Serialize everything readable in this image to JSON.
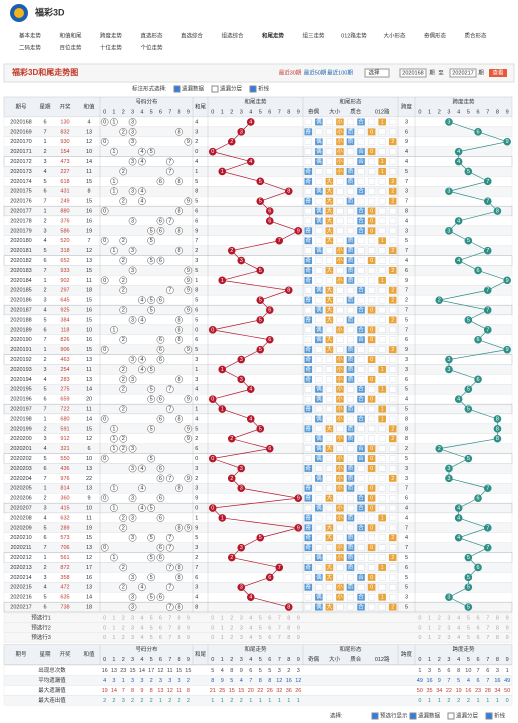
{
  "header": {
    "site": "福彩3D"
  },
  "nav": [
    [
      "基本走势",
      "和值和尾",
      "跨度走势",
      "直选形态",
      "直选综合",
      "组选综合",
      "和尾走势",
      "组三走势",
      "012路走势",
      "大小形态",
      "奇偶形态",
      "质合形态"
    ],
    [
      "二码走势",
      "百位走势",
      "十位走势",
      "个位走势"
    ]
  ],
  "page_title": "福彩3D和尾走势图",
  "filters": {
    "recent": [
      "最近30期",
      "最近50期",
      "最近100期"
    ],
    "select": "选择",
    "from": "2020168",
    "to_label": "至",
    "to": "2020217",
    "unit": "期",
    "button": "查看"
  },
  "options": {
    "label": "标注形式选择:",
    "items": [
      {
        "label": "遗漏数据",
        "checked": true
      },
      {
        "label": "遗漏分层",
        "checked": false
      },
      {
        "label": "折线",
        "checked": true
      }
    ]
  },
  "table": {
    "columns": [
      "期号",
      "星期",
      "开奖",
      "和值"
    ],
    "groups": [
      "号码分布",
      "和尾",
      "和尾走势",
      "和尾形态",
      "跨度",
      "跨度走势"
    ],
    "digits": [
      "0",
      "1",
      "2",
      "3",
      "4",
      "5",
      "6",
      "7",
      "8",
      "9"
    ],
    "forms": [
      {
        "name": "奇偶",
        "options": [
          "奇",
          "偶"
        ]
      },
      {
        "name": "大小",
        "options": [
          "大",
          "小"
        ]
      },
      {
        "name": "质合",
        "options": [
          "质",
          "合"
        ]
      },
      {
        "name": "012路",
        "options": [
          "0",
          "1",
          "2"
        ]
      }
    ],
    "rows": [
      [
        "2020168",
        6,
        "130",
        4,
        3
      ],
      [
        "2020169",
        7,
        "832",
        13,
        6
      ],
      [
        "2020170",
        1,
        "930",
        12,
        9
      ],
      [
        "2020171",
        2,
        "154",
        10,
        4
      ],
      [
        "2020172",
        3,
        "473",
        14,
        4
      ],
      [
        "2020173",
        4,
        "227",
        11,
        5
      ],
      [
        "2020174",
        5,
        "618",
        15,
        7
      ],
      [
        "2020175",
        6,
        "431",
        8,
        3
      ],
      [
        "2020176",
        7,
        "249",
        15,
        7
      ],
      [
        "2020177",
        1,
        "880",
        16,
        8
      ],
      [
        "2020178",
        2,
        "376",
        16,
        4
      ],
      [
        "2020179",
        3,
        "586",
        19,
        3
      ],
      [
        "2020180",
        4,
        "520",
        7,
        5
      ],
      [
        "2020181",
        5,
        "318",
        12,
        7
      ],
      [
        "2020182",
        6,
        "652",
        13,
        4
      ],
      [
        "2020183",
        7,
        "933",
        15,
        6
      ],
      [
        "2020184",
        1,
        "902",
        11,
        9
      ],
      [
        "2020185",
        2,
        "297",
        18,
        7
      ],
      [
        "2020186",
        3,
        "645",
        15,
        2
      ],
      [
        "2020187",
        4,
        "925",
        16,
        7
      ],
      [
        "2020188",
        5,
        "384",
        15,
        5
      ],
      [
        "2020189",
        6,
        "118",
        10,
        7
      ],
      [
        "2020190",
        7,
        "826",
        16,
        6
      ],
      [
        "2020191",
        1,
        "906",
        15,
        9
      ],
      [
        "2020192",
        2,
        "463",
        13,
        3
      ],
      [
        "2020193",
        3,
        "254",
        11,
        3
      ],
      [
        "2020194",
        4,
        "283",
        13,
        6
      ],
      [
        "2020195",
        5,
        "275",
        14,
        5
      ],
      [
        "2020196",
        6,
        "659",
        20,
        4
      ],
      [
        "2020197",
        7,
        "722",
        11,
        5
      ],
      [
        "2020198",
        1,
        "680",
        14,
        8
      ],
      [
        "2020199",
        2,
        "591",
        15,
        8
      ],
      [
        "2020200",
        3,
        "912",
        12,
        8
      ],
      [
        "2020201",
        4,
        "321",
        6,
        2
      ],
      [
        "2020202",
        5,
        "550",
        10,
        5
      ],
      [
        "2020203",
        6,
        "436",
        13,
        3
      ],
      [
        "2020204",
        7,
        "976",
        22,
        3
      ],
      [
        "2020205",
        1,
        "814",
        13,
        7
      ],
      [
        "2020206",
        2,
        "360",
        9,
        6
      ],
      [
        "2020207",
        3,
        "415",
        10,
        4
      ],
      [
        "2020208",
        4,
        "632",
        11,
        4
      ],
      [
        "2020209",
        5,
        "289",
        19,
        7
      ],
      [
        "2020210",
        6,
        "573",
        15,
        4
      ],
      [
        "2020211",
        7,
        "706",
        13,
        7
      ],
      [
        "2020212",
        1,
        "561",
        12,
        5
      ],
      [
        "2020213",
        2,
        "872",
        17,
        6
      ],
      [
        "2020214",
        3,
        "358",
        16,
        5
      ],
      [
        "2020215",
        4,
        "472",
        13,
        5
      ],
      [
        "2020216",
        5,
        "635",
        14,
        3
      ],
      [
        "2020217",
        6,
        "738",
        18,
        5
      ]
    ],
    "preselect": [
      "预选行1",
      "预选行2",
      "预选行3"
    ],
    "stats": [
      {
        "label": "出现总次数",
        "values": [
          16,
          13,
          23,
          15,
          14,
          17,
          12,
          11,
          15,
          15,
          5,
          4,
          8,
          9,
          6,
          5,
          5,
          3,
          2,
          3,
          1,
          3,
          5,
          6,
          8,
          10,
          7,
          6,
          3,
          1
        ]
      },
      {
        "label": "平均遗漏值",
        "values": [
          4,
          3,
          1,
          3,
          3,
          2,
          3,
          3,
          3,
          2,
          8,
          9,
          5,
          4,
          7,
          8,
          8,
          12,
          16,
          12,
          49,
          16,
          9,
          7,
          5,
          4,
          6,
          7,
          16,
          49
        ]
      },
      {
        "label": "最大遗漏值",
        "values": [
          19,
          14,
          7,
          8,
          9,
          8,
          13,
          12,
          11,
          8,
          21,
          25,
          15,
          15,
          20,
          22,
          26,
          32,
          36,
          26,
          50,
          35,
          34,
          22,
          19,
          16,
          23,
          28,
          34,
          50
        ]
      },
      {
        "label": "最大连出值",
        "values": [
          2,
          2,
          3,
          2,
          2,
          2,
          1,
          2,
          2,
          2,
          1,
          1,
          2,
          2,
          1,
          1,
          1,
          1,
          1,
          1,
          0,
          1,
          1,
          2,
          2,
          2,
          1,
          1,
          1,
          0
        ]
      }
    ]
  },
  "footer": {
    "label": "选择:",
    "items": [
      {
        "label": "预选行显示",
        "checked": true
      },
      {
        "label": "遗漏数据",
        "checked": true
      },
      {
        "label": "遗漏分层",
        "checked": false
      },
      {
        "label": "折线",
        "checked": true
      }
    ]
  }
}
